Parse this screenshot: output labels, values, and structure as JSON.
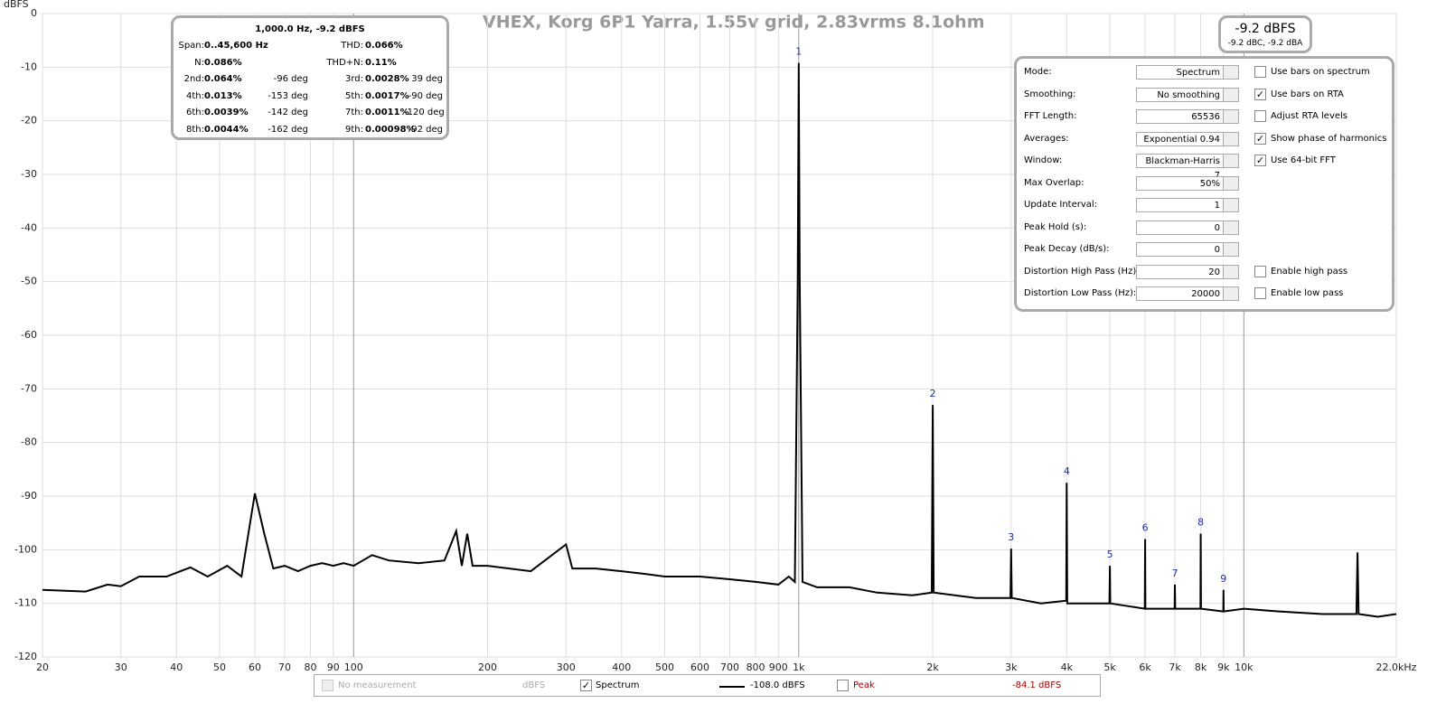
{
  "chart_data": {
    "type": "line",
    "title": "VHEX, Korg 6P1 Yarra, 1.55v grid, 2.83vrms 8.1ohm",
    "y_label": "dBFS",
    "xscale": "log",
    "grid": true,
    "xlim": [
      20,
      22000
    ],
    "ylim": [
      -120,
      0
    ],
    "xticks": [
      20,
      30,
      40,
      50,
      60,
      70,
      80,
      90,
      100,
      200,
      300,
      400,
      500,
      600,
      700,
      800,
      900,
      {
        "value": 1000,
        "label": "1k"
      },
      {
        "value": 2000,
        "label": "2k"
      },
      {
        "value": 3000,
        "label": "3k"
      },
      {
        "value": 4000,
        "label": "4k"
      },
      {
        "value": 5000,
        "label": "5k"
      },
      {
        "value": 6000,
        "label": "6k"
      },
      {
        "value": 7000,
        "label": "7k"
      },
      {
        "value": 8000,
        "label": "8k"
      },
      {
        "value": 9000,
        "label": "9k"
      },
      {
        "value": 10000,
        "label": "10k"
      },
      {
        "value": 22000,
        "label": "22.0kHz"
      }
    ],
    "yticks": [
      0,
      -10,
      -20,
      -30,
      -40,
      -50,
      -60,
      -70,
      -80,
      -90,
      -100,
      -110,
      -120
    ],
    "x": [
      20,
      25,
      28,
      30,
      33,
      38,
      43,
      47,
      52,
      56,
      60,
      63,
      66,
      70,
      75,
      80,
      85,
      90,
      95,
      100,
      110,
      120,
      140,
      160,
      170,
      175,
      180,
      185,
      200,
      250,
      300,
      310,
      350,
      400,
      450,
      500,
      600,
      700,
      800,
      900,
      950,
      980,
      995,
      1000,
      1005,
      1020,
      1100,
      1300,
      1500,
      1800,
      1990,
      2000,
      2010,
      2500,
      2990,
      3000,
      3010,
      3500,
      3990,
      4000,
      4010,
      4500,
      4990,
      5000,
      5010,
      5990,
      6000,
      6010,
      6990,
      7000,
      7010,
      7990,
      8000,
      8010,
      8990,
      9000,
      9010,
      10000,
      12000,
      15000,
      17900,
      18000,
      18100,
      20000,
      22000
    ],
    "series": [
      {
        "name": "Spectrum",
        "color": "#000000",
        "values": [
          -107.5,
          -107.8,
          -106.5,
          -106.8,
          -105,
          -105,
          -103.3,
          -105,
          -103,
          -105,
          -89.5,
          -97,
          -103.5,
          -103,
          -104,
          -103,
          -102.5,
          -103,
          -102.5,
          -103,
          -101,
          -102,
          -102.5,
          -102,
          -96.5,
          -103,
          -97,
          -103,
          -103,
          -104,
          -99,
          -103.5,
          -103.5,
          -104,
          -104.5,
          -105,
          -105,
          -105.5,
          -106,
          -106.5,
          -105,
          -106,
          -50,
          -9.2,
          -50,
          -106,
          -107,
          -107,
          -108,
          -108.5,
          -108,
          -73,
          -108,
          -109,
          -109,
          -99.8,
          -109,
          -110,
          -109.5,
          -87.5,
          -110,
          -110,
          -110,
          -103,
          -110,
          -111,
          -98,
          -111,
          -111,
          -106.5,
          -111,
          -111,
          -97,
          -111,
          -111.5,
          -107.5,
          -111.5,
          -111,
          -111.5,
          -112,
          -112,
          -100.5,
          -112,
          -112.5,
          -112
        ]
      }
    ],
    "harmonic_markers": [
      {
        "label": "1",
        "x": 1000,
        "y": -9.2
      },
      {
        "label": "2",
        "x": 2000,
        "y": -73
      },
      {
        "label": "3",
        "x": 3000,
        "y": -99.8
      },
      {
        "label": "4",
        "x": 4000,
        "y": -87.5
      },
      {
        "label": "5",
        "x": 5000,
        "y": -103
      },
      {
        "label": "6",
        "x": 6000,
        "y": -98
      },
      {
        "label": "7",
        "x": 7000,
        "y": -106.5
      },
      {
        "label": "8",
        "x": 8000,
        "y": -97
      },
      {
        "label": "9",
        "x": 9000,
        "y": -107.5
      }
    ]
  },
  "distortion": {
    "header": "1,000.0 Hz, -9.2 dBFS",
    "rows": [
      [
        "Span:",
        "0..45,600 Hz",
        "",
        "THD:",
        "0.066%",
        ""
      ],
      [
        "N:",
        "0.086%",
        "",
        "THD+N:",
        "0.11%",
        ""
      ],
      [
        "2nd:",
        "0.064%",
        "-96 deg",
        "3rd:",
        "0.0028%",
        "39 deg"
      ],
      [
        "4th:",
        "0.013%",
        "-153 deg",
        "5th:",
        "0.0017%",
        "-90 deg"
      ],
      [
        "6th:",
        "0.0039%",
        "-142 deg",
        "7th:",
        "0.0011%",
        "-120 deg"
      ],
      [
        "8th:",
        "0.0044%",
        "-162 deg",
        "9th:",
        "0.00098%",
        "-92 deg"
      ]
    ]
  },
  "level": {
    "main": "-9.2 dBFS",
    "sub": "-9.2 dBC, -9.2 dBA"
  },
  "controls": [
    {
      "label": "Mode:",
      "value": "Spectrum",
      "check": "Use bars on spectrum",
      "checked": false
    },
    {
      "label": "Smoothing:",
      "value": "No  smoothing",
      "check": "Use bars on RTA",
      "checked": true
    },
    {
      "label": "FFT Length:",
      "value": "65536",
      "check": "Adjust RTA levels",
      "checked": false
    },
    {
      "label": "Averages:",
      "value": "Exponential 0.94",
      "check": "Show phase of harmonics",
      "checked": true
    },
    {
      "label": "Window:",
      "value": "Blackman-Harris 7",
      "check": "Use 64-bit FFT",
      "checked": true
    },
    {
      "label": "Max Overlap:",
      "value": "50%"
    },
    {
      "label": "Update Interval:",
      "value": "1"
    },
    {
      "label": "Peak Hold (s):",
      "value": "0"
    },
    {
      "label": "Peak Decay (dB/s):",
      "value": "0"
    },
    {
      "label": "Distortion High Pass (Hz):",
      "value": "20",
      "check": "Enable high pass",
      "checked": false
    },
    {
      "label": "Distortion Low Pass (Hz):",
      "value": "20000",
      "check": "Enable low pass",
      "checked": false
    }
  ],
  "bottom_bar": {
    "no_measurement": "No measurement",
    "no_measurement_unit": "dBFS",
    "spectrum": "Spectrum",
    "spectrum_checked": true,
    "spectrum_level": "-108.0 dBFS",
    "peak": "Peak",
    "peak_checked": false,
    "peak_level": "-84.1 dBFS"
  }
}
